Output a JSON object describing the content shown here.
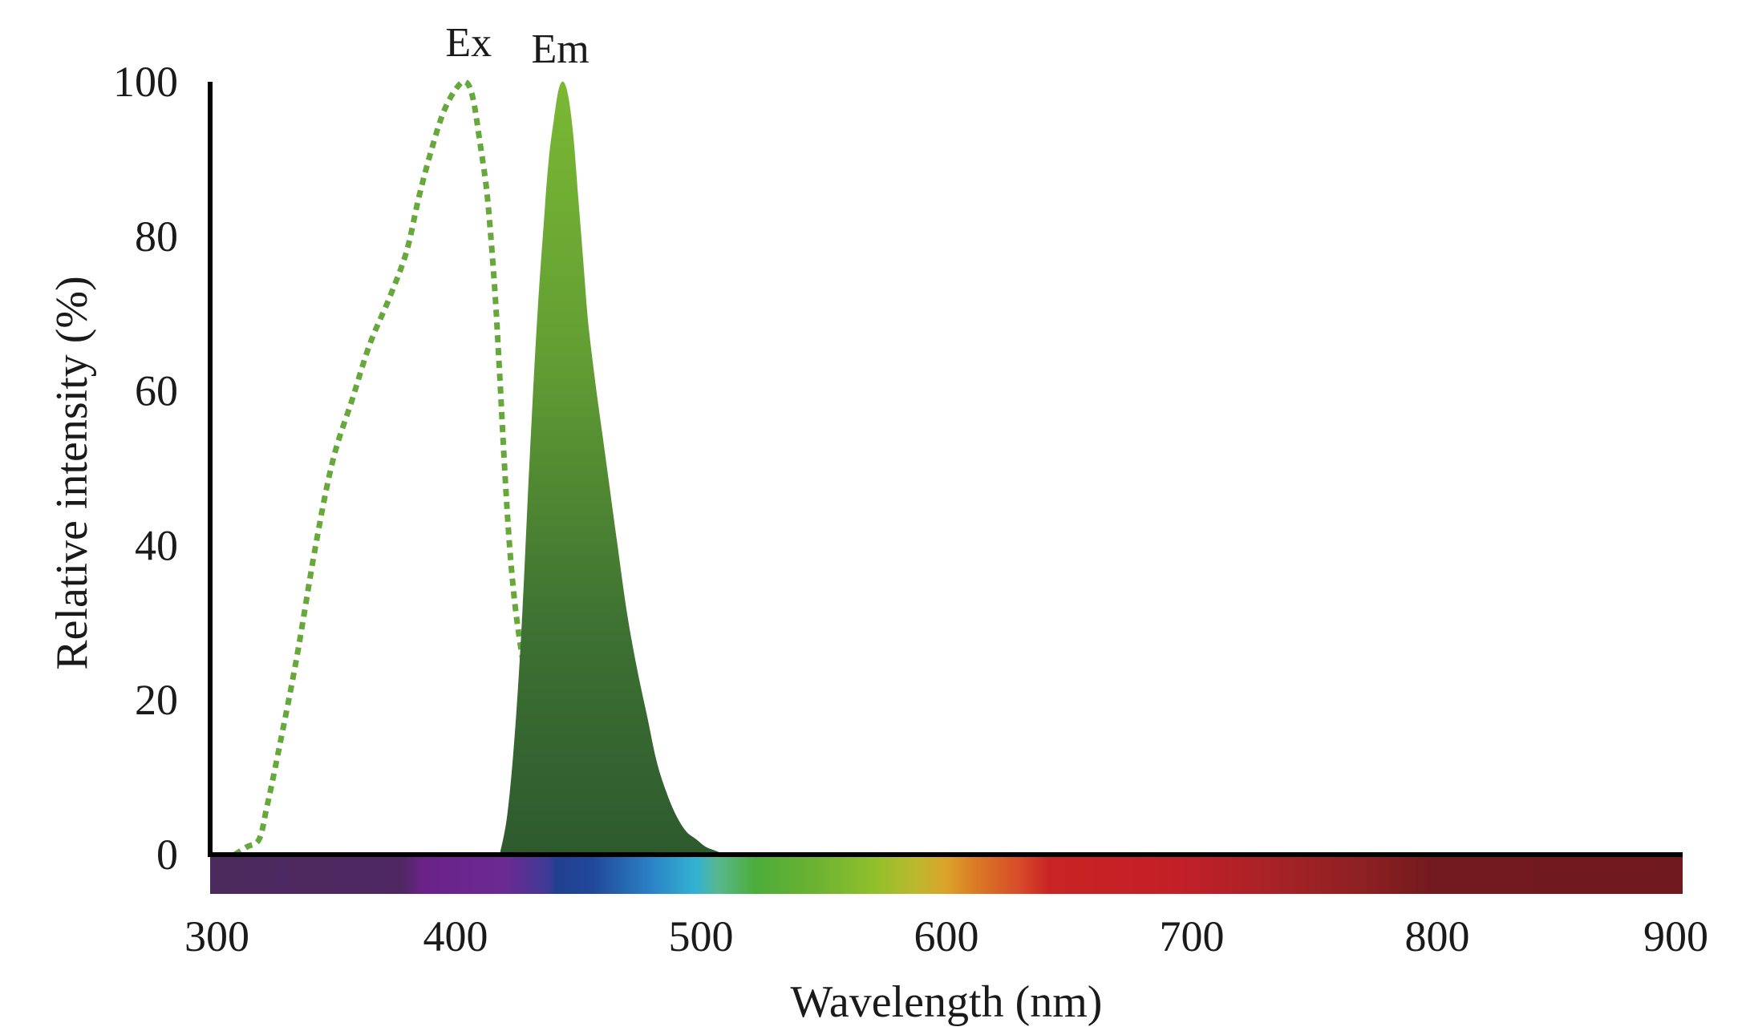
{
  "chart_data": {
    "type": "area",
    "xlabel": "Wavelength (nm)",
    "ylabel": "Relative intensity (%)",
    "xlim": [
      300,
      900
    ],
    "ylim": [
      0,
      100
    ],
    "x_ticks": [
      "300",
      "400",
      "500",
      "600",
      "700",
      "800",
      "900"
    ],
    "y_ticks": [
      "0",
      "20",
      "40",
      "60",
      "80",
      "100"
    ],
    "grid": false,
    "colorbar": "visible spectrum gradient below x-axis",
    "series": [
      {
        "name": "Ex",
        "style": "dotted line",
        "color": "#66a83a",
        "x": [
          310,
          315,
          320,
          323,
          327,
          335,
          343,
          350,
          358,
          365,
          373,
          380,
          385,
          390,
          395,
          400,
          404,
          407,
          410,
          413,
          416,
          418,
          420,
          422,
          424,
          426,
          428,
          430,
          432,
          434,
          436,
          438,
          440,
          442,
          443
        ],
        "y": [
          0,
          1,
          2,
          6,
          12,
          25,
          40,
          51,
          59,
          66,
          72,
          78,
          85,
          91,
          96,
          99,
          100,
          98,
          92,
          85,
          73,
          62,
          50,
          40,
          33,
          28,
          24,
          20,
          15,
          12,
          9,
          6,
          3,
          1,
          0
        ]
      },
      {
        "name": "Em",
        "style": "filled area",
        "color": "#7ab833",
        "color_base": "#2e5a2e",
        "x": [
          418,
          421,
          424,
          427,
          430,
          433,
          436,
          438,
          440,
          442,
          444,
          446,
          448,
          450,
          452,
          454,
          457,
          460,
          463,
          466,
          470,
          474,
          478,
          482,
          486,
          490,
          494,
          498,
          502,
          506,
          510,
          514
        ],
        "y": [
          0,
          5,
          15,
          30,
          50,
          68,
          82,
          90,
          95,
          99,
          100,
          98,
          93,
          85,
          77,
          69,
          61,
          54,
          47,
          40,
          31,
          24,
          18,
          12,
          8,
          5,
          3,
          2,
          1,
          0.5,
          0,
          0
        ]
      }
    ]
  }
}
